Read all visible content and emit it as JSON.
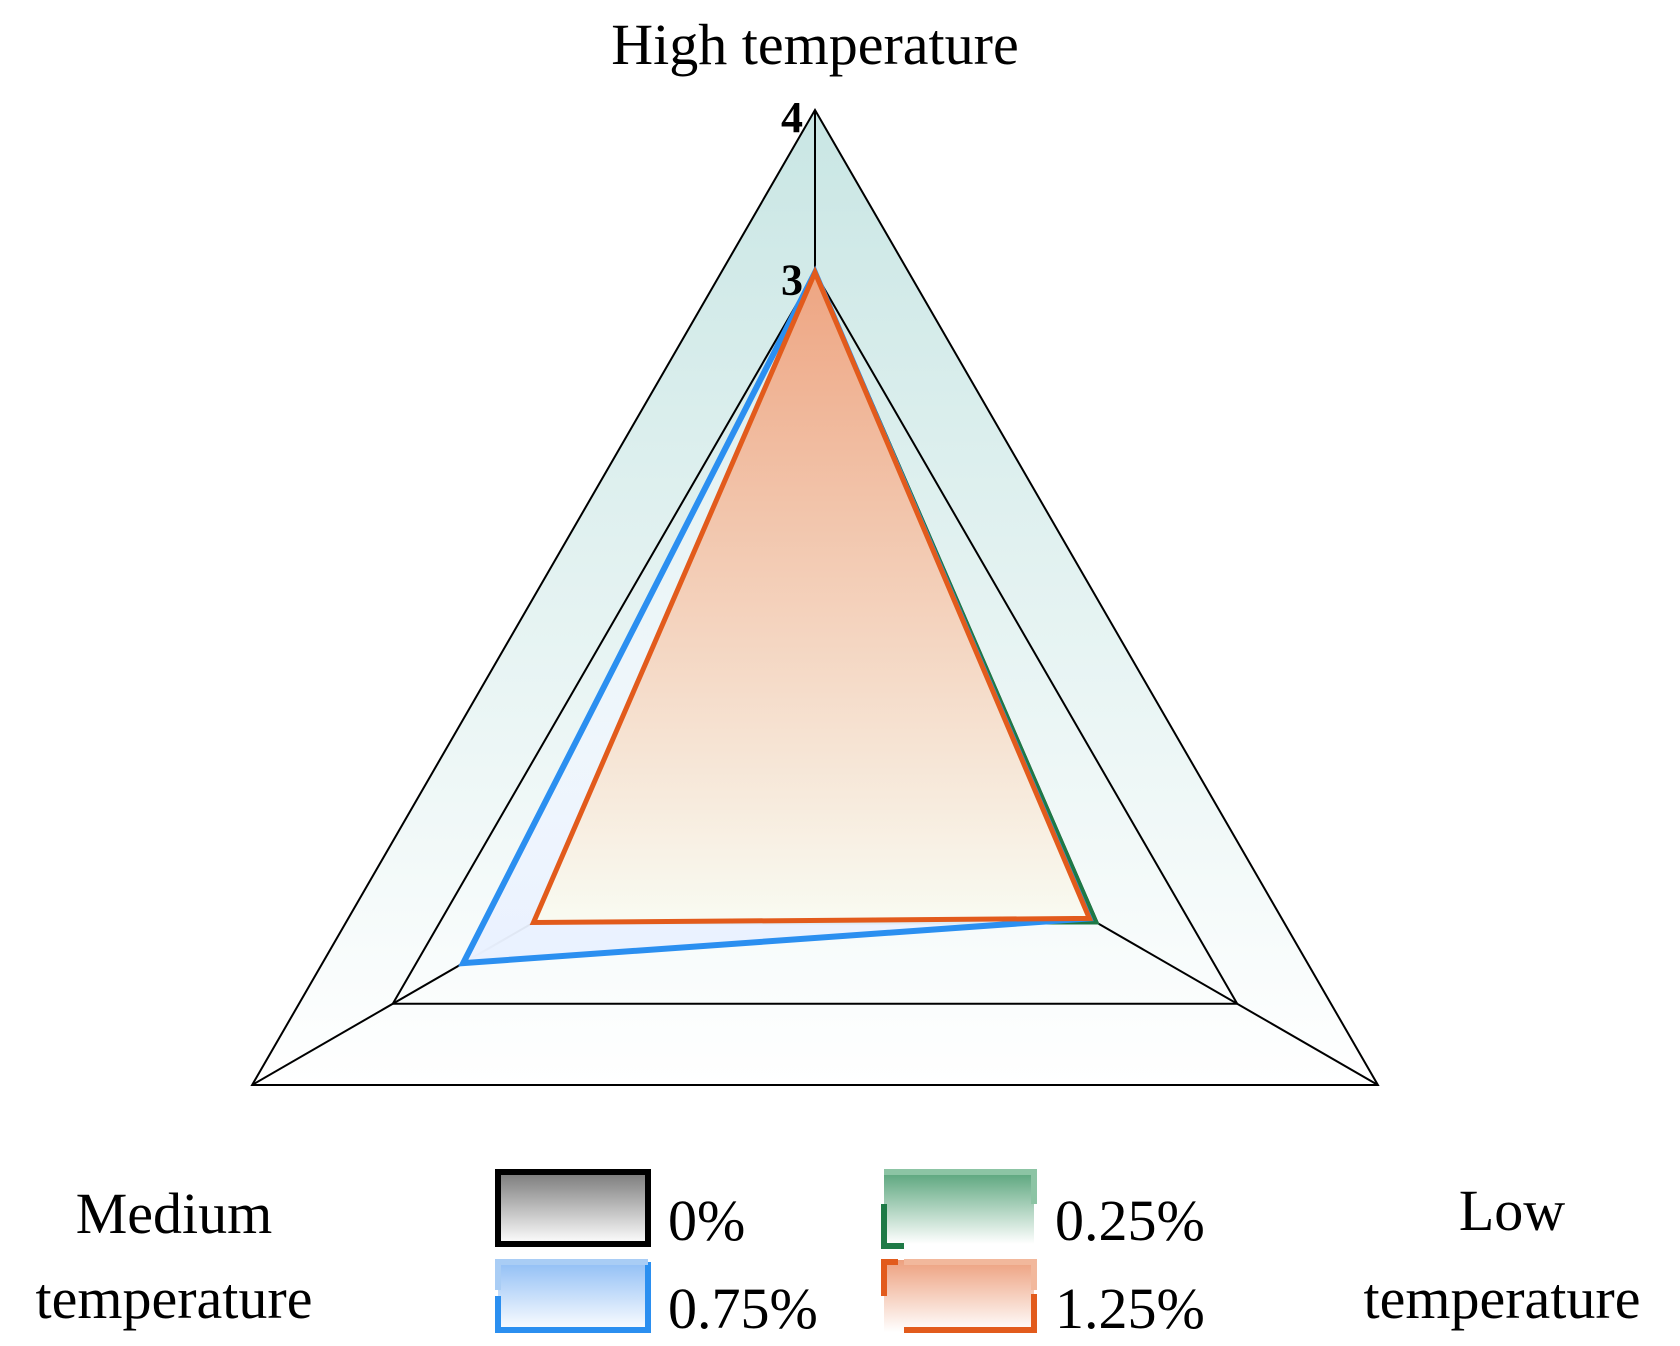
{
  "chart_data": {
    "type": "radar",
    "axes": [
      "High temperature",
      "Low temperature",
      "Medium temperature"
    ],
    "axis_labels": {
      "top": "High temperature",
      "right_line1": "Low",
      "right_line2": "temperature",
      "left_line1": "Medium",
      "left_line2": "temperature"
    },
    "range": [
      0,
      4
    ],
    "rings": [
      2,
      3,
      4
    ],
    "tick_labels": [
      {
        "value": 3,
        "text": "3"
      },
      {
        "value": 4,
        "text": "4"
      }
    ],
    "series": [
      {
        "name": "0%",
        "values": [
          3,
          2,
          2
        ],
        "color": "#000000"
      },
      {
        "name": "0.25%",
        "values": [
          3,
          2,
          2
        ],
        "color": "#1e7a46"
      },
      {
        "name": "0.75%",
        "values": [
          3,
          1.95,
          2.5
        ],
        "color": "#2b8ff0"
      },
      {
        "name": "1.25%",
        "values": [
          3,
          1.95,
          2
        ],
        "color": "#e25b1c"
      }
    ],
    "legend": [
      "0%",
      "0.25%",
      "0.75%",
      "1.25%"
    ],
    "legend_position": "bottom-center"
  },
  "colors": {
    "background_fill_top": "#c9e6e4",
    "background_fill_bottom": "#ffffff",
    "fill_1_25_top": "#eea582",
    "fill_1_25_bottom": "#f7fbf1"
  }
}
